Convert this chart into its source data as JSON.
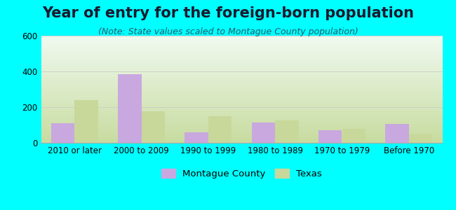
{
  "title": "Year of entry for the foreign-born population",
  "subtitle": "(Note: State values scaled to Montague County population)",
  "categories": [
    "2010 or later",
    "2000 to 2009",
    "1990 to 1999",
    "1980 to 1989",
    "1970 to 1979",
    "Before 1970"
  ],
  "montague_values": [
    110,
    385,
    60,
    115,
    70,
    105
  ],
  "texas_values": [
    240,
    178,
    150,
    125,
    78,
    48
  ],
  "montague_color": "#c9a8e0",
  "texas_color": "#c8d89a",
  "background_color": "#00ffff",
  "ylim": [
    0,
    600
  ],
  "yticks": [
    0,
    200,
    400,
    600
  ],
  "bar_width": 0.35,
  "legend_labels": [
    "Montague County",
    "Texas"
  ],
  "title_fontsize": 15,
  "subtitle_fontsize": 9,
  "tick_fontsize": 8.5,
  "title_color": "#1a1a2e",
  "subtitle_color": "#2a5a6a"
}
